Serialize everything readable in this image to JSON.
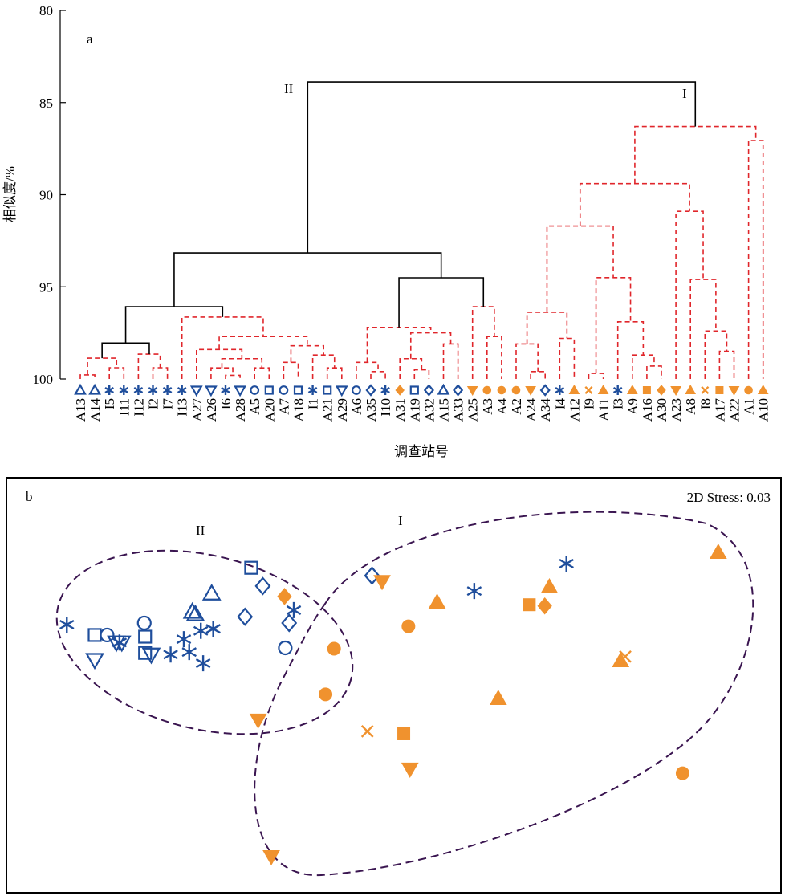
{
  "chart_data": [
    {
      "type": "dendrogram",
      "panel": "a",
      "ylabel": "相似度/%",
      "xlabel": "调查站号",
      "ylim": [
        80,
        100
      ],
      "y_inverted": true,
      "yticks": [
        80,
        85,
        90,
        95,
        100
      ],
      "annotations": [
        "II",
        "I"
      ],
      "leaves": [
        {
          "label": "A13",
          "marker": "open-triangle",
          "color": "#1f4e9c"
        },
        {
          "label": "A14",
          "marker": "open-triangle",
          "color": "#1f4e9c"
        },
        {
          "label": "I5",
          "marker": "star",
          "color": "#1f4e9c"
        },
        {
          "label": "I11",
          "marker": "star",
          "color": "#1f4e9c"
        },
        {
          "label": "I12",
          "marker": "star",
          "color": "#1f4e9c"
        },
        {
          "label": "I2",
          "marker": "star",
          "color": "#1f4e9c"
        },
        {
          "label": "I7",
          "marker": "star",
          "color": "#1f4e9c"
        },
        {
          "label": "I13",
          "marker": "star",
          "color": "#1f4e9c"
        },
        {
          "label": "A27",
          "marker": "open-invtriangle",
          "color": "#1f4e9c"
        },
        {
          "label": "A26",
          "marker": "open-invtriangle",
          "color": "#1f4e9c"
        },
        {
          "label": "I6",
          "marker": "star",
          "color": "#1f4e9c"
        },
        {
          "label": "A28",
          "marker": "open-invtriangle",
          "color": "#1f4e9c"
        },
        {
          "label": "A5",
          "marker": "open-circle",
          "color": "#1f4e9c"
        },
        {
          "label": "A20",
          "marker": "open-square",
          "color": "#1f4e9c"
        },
        {
          "label": "A7",
          "marker": "open-circle",
          "color": "#1f4e9c"
        },
        {
          "label": "A18",
          "marker": "open-square",
          "color": "#1f4e9c"
        },
        {
          "label": "I1",
          "marker": "star",
          "color": "#1f4e9c"
        },
        {
          "label": "A21",
          "marker": "open-square",
          "color": "#1f4e9c"
        },
        {
          "label": "A29",
          "marker": "open-invtriangle",
          "color": "#1f4e9c"
        },
        {
          "label": "A6",
          "marker": "open-circle",
          "color": "#1f4e9c"
        },
        {
          "label": "A35",
          "marker": "open-diamond",
          "color": "#1f4e9c"
        },
        {
          "label": "I10",
          "marker": "star",
          "color": "#1f4e9c"
        },
        {
          "label": "A31",
          "marker": "filled-diamond",
          "color": "#f0922e"
        },
        {
          "label": "A19",
          "marker": "open-square",
          "color": "#1f4e9c"
        },
        {
          "label": "A32",
          "marker": "open-diamond",
          "color": "#1f4e9c"
        },
        {
          "label": "A15",
          "marker": "open-triangle",
          "color": "#1f4e9c"
        },
        {
          "label": "A33",
          "marker": "open-diamond",
          "color": "#1f4e9c"
        },
        {
          "label": "A25",
          "marker": "filled-invtriangle",
          "color": "#f0922e"
        },
        {
          "label": "A3",
          "marker": "filled-circle",
          "color": "#f0922e"
        },
        {
          "label": "A4",
          "marker": "filled-circle",
          "color": "#f0922e"
        },
        {
          "label": "A2",
          "marker": "filled-circle",
          "color": "#f0922e"
        },
        {
          "label": "A24",
          "marker": "filled-invtriangle",
          "color": "#f0922e"
        },
        {
          "label": "A34",
          "marker": "open-diamond",
          "color": "#1f4e9c"
        },
        {
          "label": "I4",
          "marker": "star",
          "color": "#1f4e9c"
        },
        {
          "label": "A12",
          "marker": "filled-triangle",
          "color": "#f0922e"
        },
        {
          "label": "I9",
          "marker": "cross",
          "color": "#f0922e"
        },
        {
          "label": "A11",
          "marker": "filled-triangle",
          "color": "#f0922e"
        },
        {
          "label": "I3",
          "marker": "star",
          "color": "#1f4e9c"
        },
        {
          "label": "A9",
          "marker": "filled-triangle",
          "color": "#f0922e"
        },
        {
          "label": "A16",
          "marker": "filled-square",
          "color": "#f0922e"
        },
        {
          "label": "A30",
          "marker": "filled-diamond",
          "color": "#f0922e"
        },
        {
          "label": "A23",
          "marker": "filled-invtriangle",
          "color": "#f0922e"
        },
        {
          "label": "A8",
          "marker": "filled-triangle",
          "color": "#f0922e"
        },
        {
          "label": "I8",
          "marker": "cross",
          "color": "#f0922e"
        },
        {
          "label": "A17",
          "marker": "filled-square",
          "color": "#f0922e"
        },
        {
          "label": "A22",
          "marker": "filled-invtriangle",
          "color": "#f0922e"
        },
        {
          "label": "A1",
          "marker": "filled-circle",
          "color": "#f0922e"
        },
        {
          "label": "A10",
          "marker": "filled-triangle",
          "color": "#f0922e"
        }
      ],
      "merges": [
        {
          "a": 0,
          "b": 1,
          "height": 99.78,
          "color": "#e0262b",
          "dashed": true
        },
        {
          "a": 2,
          "b": 3,
          "height": 99.39,
          "color": "#e0262b",
          "dashed": true
        },
        {
          "a": 48,
          "b": 49,
          "height": 98.87,
          "color": "#e0262b",
          "dashed": true
        },
        {
          "a": 5,
          "b": 6,
          "height": 99.39,
          "color": "#e0262b",
          "dashed": true
        },
        {
          "a": 4,
          "b": 51,
          "height": 98.65,
          "color": "#e0262b",
          "dashed": true
        },
        {
          "a": 50,
          "b": 52,
          "height": 98.05,
          "color": "#000000",
          "dashed": false
        },
        {
          "a": 10,
          "b": 11,
          "height": 99.8,
          "color": "#e0262b",
          "dashed": true
        },
        {
          "a": 9,
          "b": 54,
          "height": 99.4,
          "color": "#e0262b",
          "dashed": true
        },
        {
          "a": 12,
          "b": 13,
          "height": 99.4,
          "color": "#e0262b",
          "dashed": true
        },
        {
          "a": 55,
          "b": 56,
          "height": 98.9,
          "color": "#e0262b",
          "dashed": true
        },
        {
          "a": 8,
          "b": 57,
          "height": 98.4,
          "color": "#e0262b",
          "dashed": true
        },
        {
          "a": 14,
          "b": 15,
          "height": 99.1,
          "color": "#e0262b",
          "dashed": true
        },
        {
          "a": 17,
          "b": 18,
          "height": 99.4,
          "color": "#e0262b",
          "dashed": true
        },
        {
          "a": 16,
          "b": 60,
          "height": 98.7,
          "color": "#e0262b",
          "dashed": true
        },
        {
          "a": 59,
          "b": 61,
          "height": 98.2,
          "color": "#e0262b",
          "dashed": true
        },
        {
          "a": 58,
          "b": 62,
          "height": 97.7,
          "color": "#e0262b",
          "dashed": true
        },
        {
          "a": 7,
          "b": 63,
          "height": 96.64,
          "color": "#e0262b",
          "dashed": true
        },
        {
          "a": 53,
          "b": 64,
          "height": 96.08,
          "color": "#000000",
          "dashed": false
        },
        {
          "a": 20,
          "b": 21,
          "height": 99.6,
          "color": "#e0262b",
          "dashed": true
        },
        {
          "a": 19,
          "b": 66,
          "height": 99.1,
          "color": "#e0262b",
          "dashed": true
        },
        {
          "a": 23,
          "b": 24,
          "height": 99.5,
          "color": "#e0262b",
          "dashed": true
        },
        {
          "a": 22,
          "b": 68,
          "height": 98.9,
          "color": "#e0262b",
          "dashed": true
        },
        {
          "a": 25,
          "b": 26,
          "height": 98.1,
          "color": "#e0262b",
          "dashed": true
        },
        {
          "a": 69,
          "b": 70,
          "height": 97.5,
          "color": "#e0262b",
          "dashed": true
        },
        {
          "a": 67,
          "b": 71,
          "height": 97.2,
          "color": "#e0262b",
          "dashed": true
        },
        {
          "a": 28,
          "b": 29,
          "height": 97.7,
          "color": "#e0262b",
          "dashed": true
        },
        {
          "a": 27,
          "b": 73,
          "height": 96.08,
          "color": "#e0262b",
          "dashed": true
        },
        {
          "a": 72,
          "b": 74,
          "height": 94.51,
          "color": "#000000",
          "dashed": false
        },
        {
          "a": 65,
          "b": 75,
          "height": 93.16,
          "color": "#000000",
          "dashed": false
        },
        {
          "a": 31,
          "b": 32,
          "height": 99.6,
          "color": "#e0262b",
          "dashed": true
        },
        {
          "a": 30,
          "b": 77,
          "height": 98.1,
          "color": "#e0262b",
          "dashed": true
        },
        {
          "a": 33,
          "b": 34,
          "height": 97.8,
          "color": "#e0262b",
          "dashed": true
        },
        {
          "a": 78,
          "b": 79,
          "height": 96.38,
          "color": "#e0262b",
          "dashed": true
        },
        {
          "a": 35,
          "b": 36,
          "height": 99.7,
          "color": "#e0262b",
          "dashed": true
        },
        {
          "a": 39,
          "b": 40,
          "height": 99.3,
          "color": "#e0262b",
          "dashed": true
        },
        {
          "a": 38,
          "b": 82,
          "height": 98.7,
          "color": "#e0262b",
          "dashed": true
        },
        {
          "a": 37,
          "b": 83,
          "height": 96.9,
          "color": "#e0262b",
          "dashed": true
        },
        {
          "a": 81,
          "b": 84,
          "height": 94.5,
          "color": "#e0262b",
          "dashed": true
        },
        {
          "a": 80,
          "b": 85,
          "height": 91.7,
          "color": "#e0262b",
          "dashed": true
        },
        {
          "a": 44,
          "b": 45,
          "height": 98.5,
          "color": "#e0262b",
          "dashed": true
        },
        {
          "a": 43,
          "b": 87,
          "height": 97.4,
          "color": "#e0262b",
          "dashed": true
        },
        {
          "a": 42,
          "b": 88,
          "height": 94.6,
          "color": "#e0262b",
          "dashed": true
        },
        {
          "a": 41,
          "b": 89,
          "height": 90.9,
          "color": "#e0262b",
          "dashed": true
        },
        {
          "a": 86,
          "b": 90,
          "height": 89.4,
          "color": "#e0262b",
          "dashed": true
        },
        {
          "a": 46,
          "b": 47,
          "height": 87.06,
          "color": "#e0262b",
          "dashed": true
        },
        {
          "a": 91,
          "b": 92,
          "height": 86.3,
          "color": "#e0262b",
          "dashed": true
        },
        {
          "a": 76,
          "b": 93,
          "height": 83.88,
          "color": "#000000",
          "dashed": false
        }
      ]
    },
    {
      "type": "scatter",
      "panel": "b",
      "subtitle": "2D Stress: 0.03",
      "annotations": [
        "II",
        "I"
      ],
      "xlim": [
        0,
        100
      ],
      "ylim": [
        0,
        100
      ],
      "x": [
        7.8,
        11.4,
        13.0,
        11.4,
        14.2,
        14.9,
        14.6,
        17.8,
        17.9,
        17.9,
        18.7,
        21.2,
        22.9,
        23.6,
        24.0,
        24.4,
        25.1,
        25.4,
        26.5,
        26.7,
        31.6,
        33.1,
        30.8,
        36.0,
        36.5,
        37.1,
        47.2,
        60.4,
        72.3,
        35.9,
        48.5,
        51.9,
        55.6,
        42.3,
        41.2,
        32.5,
        46.6,
        51.3,
        52.1,
        34.2,
        63.5,
        67.5,
        69.5,
        70.1,
        79.3,
        79.9,
        91.9,
        87.3
      ],
      "y": [
        64.6,
        62.1,
        62.1,
        56.1,
        60.3,
        60.3,
        60.3,
        65.0,
        61.7,
        57.8,
        57.4,
        57.4,
        61.1,
        58.0,
        67.7,
        67.1,
        63.1,
        55.3,
        72.1,
        63.6,
        78.3,
        73.9,
        66.5,
        59.0,
        65.0,
        68.1,
        76.4,
        72.7,
        79.3,
        71.4,
        75.0,
        64.2,
        70.0,
        58.8,
        47.8,
        41.6,
        38.9,
        38.3,
        29.8,
        8.7,
        46.8,
        69.4,
        69.1,
        73.7,
        55.9,
        56.9,
        82.0,
        28.8
      ],
      "marker": [
        "star",
        "open-square",
        "open-circle",
        "open-invtriangle",
        "open-invtriangle",
        "open-invtriangle",
        "star",
        "open-circle",
        "open-square",
        "open-square",
        "open-invtriangle",
        "star",
        "star",
        "star",
        "open-triangle",
        "open-triangle",
        "star",
        "star",
        "open-triangle",
        "star",
        "open-square",
        "open-diamond",
        "open-diamond",
        "open-circle",
        "open-diamond",
        "star",
        "open-diamond",
        "star",
        "star",
        "filled-diamond",
        "filled-invtriangle",
        "filled-circle",
        "filled-triangle",
        "filled-circle",
        "filled-circle",
        "filled-invtriangle",
        "cross",
        "filled-square",
        "filled-invtriangle",
        "filled-invtriangle",
        "filled-triangle",
        "filled-square",
        "filled-diamond",
        "filled-triangle",
        "filled-triangle",
        "cross",
        "filled-triangle",
        "filled-circle"
      ],
      "color": [
        "#1f4e9c",
        "#1f4e9c",
        "#1f4e9c",
        "#1f4e9c",
        "#1f4e9c",
        "#1f4e9c",
        "#1f4e9c",
        "#1f4e9c",
        "#1f4e9c",
        "#1f4e9c",
        "#1f4e9c",
        "#1f4e9c",
        "#1f4e9c",
        "#1f4e9c",
        "#1f4e9c",
        "#1f4e9c",
        "#1f4e9c",
        "#1f4e9c",
        "#1f4e9c",
        "#1f4e9c",
        "#1f4e9c",
        "#1f4e9c",
        "#1f4e9c",
        "#1f4e9c",
        "#1f4e9c",
        "#1f4e9c",
        "#1f4e9c",
        "#1f4e9c",
        "#1f4e9c",
        "#f0922e",
        "#f0922e",
        "#f0922e",
        "#f0922e",
        "#f0922e",
        "#f0922e",
        "#f0922e",
        "#f0922e",
        "#f0922e",
        "#f0922e",
        "#f0922e",
        "#f0922e",
        "#f0922e",
        "#f0922e",
        "#f0922e",
        "#f0922e",
        "#f0922e",
        "#f0922e",
        "#f0922e"
      ]
    }
  ]
}
